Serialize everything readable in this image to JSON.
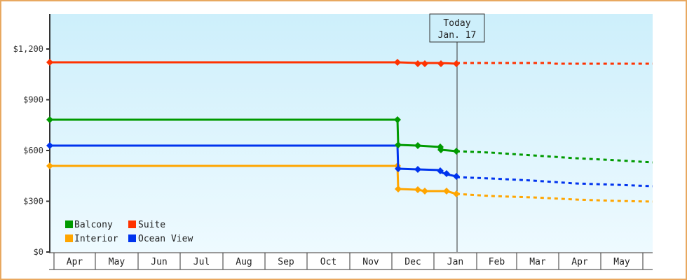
{
  "chart_data": {
    "type": "line",
    "title": "",
    "xlabel": "",
    "ylabel": "",
    "ylim": [
      0,
      1400
    ],
    "yticks": [
      {
        "value": 0,
        "label": "$0"
      },
      {
        "value": 300,
        "label": "$300"
      },
      {
        "value": 600,
        "label": "$600"
      },
      {
        "value": 900,
        "label": "$900"
      },
      {
        "value": 1200,
        "label": "$1,200"
      }
    ],
    "months": [
      "Apr",
      "May",
      "Jun",
      "Jul",
      "Aug",
      "Sep",
      "Oct",
      "Nov",
      "Dec",
      "Jan",
      "Feb",
      "Mar",
      "Apr",
      "May"
    ],
    "today_marker": {
      "line1": "Today",
      "line2": "Jan. 17"
    },
    "legend_position": "lower-left",
    "grid": false,
    "series": [
      {
        "name": "Balcony",
        "color": "#009a00",
        "history": [
          {
            "date": "Apr",
            "value": 780
          },
          {
            "date": "Dec 1",
            "value": 780
          },
          {
            "date": "Dec 1",
            "value": 635
          },
          {
            "date": "Dec 15",
            "value": 632
          },
          {
            "date": "Jan 3",
            "value": 625
          },
          {
            "date": "Jan 4",
            "value": 605
          },
          {
            "date": "Jan 17",
            "value": 597
          }
        ],
        "forecast": [
          {
            "date": "Jan 17",
            "value": 597
          },
          {
            "date": "Feb",
            "value": 590
          },
          {
            "date": "Mar",
            "value": 570
          },
          {
            "date": "Apr",
            "value": 555
          },
          {
            "date": "May",
            "value": 540
          },
          {
            "date": "end",
            "value": 530
          }
        ]
      },
      {
        "name": "Suite",
        "color": "#ff3300",
        "history": [
          {
            "date": "Apr",
            "value": 1123
          },
          {
            "date": "Dec 1",
            "value": 1123
          },
          {
            "date": "Dec 15",
            "value": 1118
          },
          {
            "date": "Dec 20",
            "value": 1118
          },
          {
            "date": "Jan 3",
            "value": 1118
          },
          {
            "date": "Jan 17",
            "value": 1115
          }
        ],
        "forecast": [
          {
            "date": "Jan 17",
            "value": 1115
          },
          {
            "date": "Mar",
            "value": 1115
          },
          {
            "date": "end",
            "value": 1113
          }
        ]
      },
      {
        "name": "Interior",
        "color": "#ffa500",
        "history": [
          {
            "date": "Apr",
            "value": 510
          },
          {
            "date": "Dec 1",
            "value": 510
          },
          {
            "date": "Dec 1",
            "value": 373
          },
          {
            "date": "Dec 15",
            "value": 370
          },
          {
            "date": "Dec 20",
            "value": 363
          },
          {
            "date": "Jan 8",
            "value": 363
          },
          {
            "date": "Jan 17",
            "value": 344
          }
        ],
        "forecast": [
          {
            "date": "Jan 17",
            "value": 344
          },
          {
            "date": "Feb",
            "value": 336
          },
          {
            "date": "Mar",
            "value": 325
          },
          {
            "date": "Apr",
            "value": 318
          },
          {
            "date": "May",
            "value": 310
          },
          {
            "date": "end",
            "value": 302
          }
        ]
      },
      {
        "name": "Ocean View",
        "color": "#0033ee",
        "history": [
          {
            "date": "Apr",
            "value": 630
          },
          {
            "date": "Dec 1",
            "value": 630
          },
          {
            "date": "Dec 1",
            "value": 493
          },
          {
            "date": "Dec 15",
            "value": 490
          },
          {
            "date": "Jan 3",
            "value": 486
          },
          {
            "date": "Jan 8",
            "value": 465
          },
          {
            "date": "Jan 17",
            "value": 447
          }
        ],
        "forecast": [
          {
            "date": "Jan 17",
            "value": 447
          },
          {
            "date": "Feb",
            "value": 438
          },
          {
            "date": "Mar",
            "value": 425
          },
          {
            "date": "Apr",
            "value": 410
          },
          {
            "date": "May",
            "value": 400
          },
          {
            "date": "end",
            "value": 390
          }
        ]
      }
    ]
  },
  "legend": {
    "items": [
      {
        "label": "Balcony",
        "color": "#009a00"
      },
      {
        "label": "Suite",
        "color": "#ff3300"
      },
      {
        "label": "Interior",
        "color": "#ffa500"
      },
      {
        "label": "Ocean View",
        "color": "#0033ee"
      }
    ]
  },
  "style": {
    "frame_border": "#e8a860",
    "plot_bg_top": "#cdeffb",
    "plot_bg_bottom": "#eef9fe",
    "axis_color": "#333333"
  }
}
